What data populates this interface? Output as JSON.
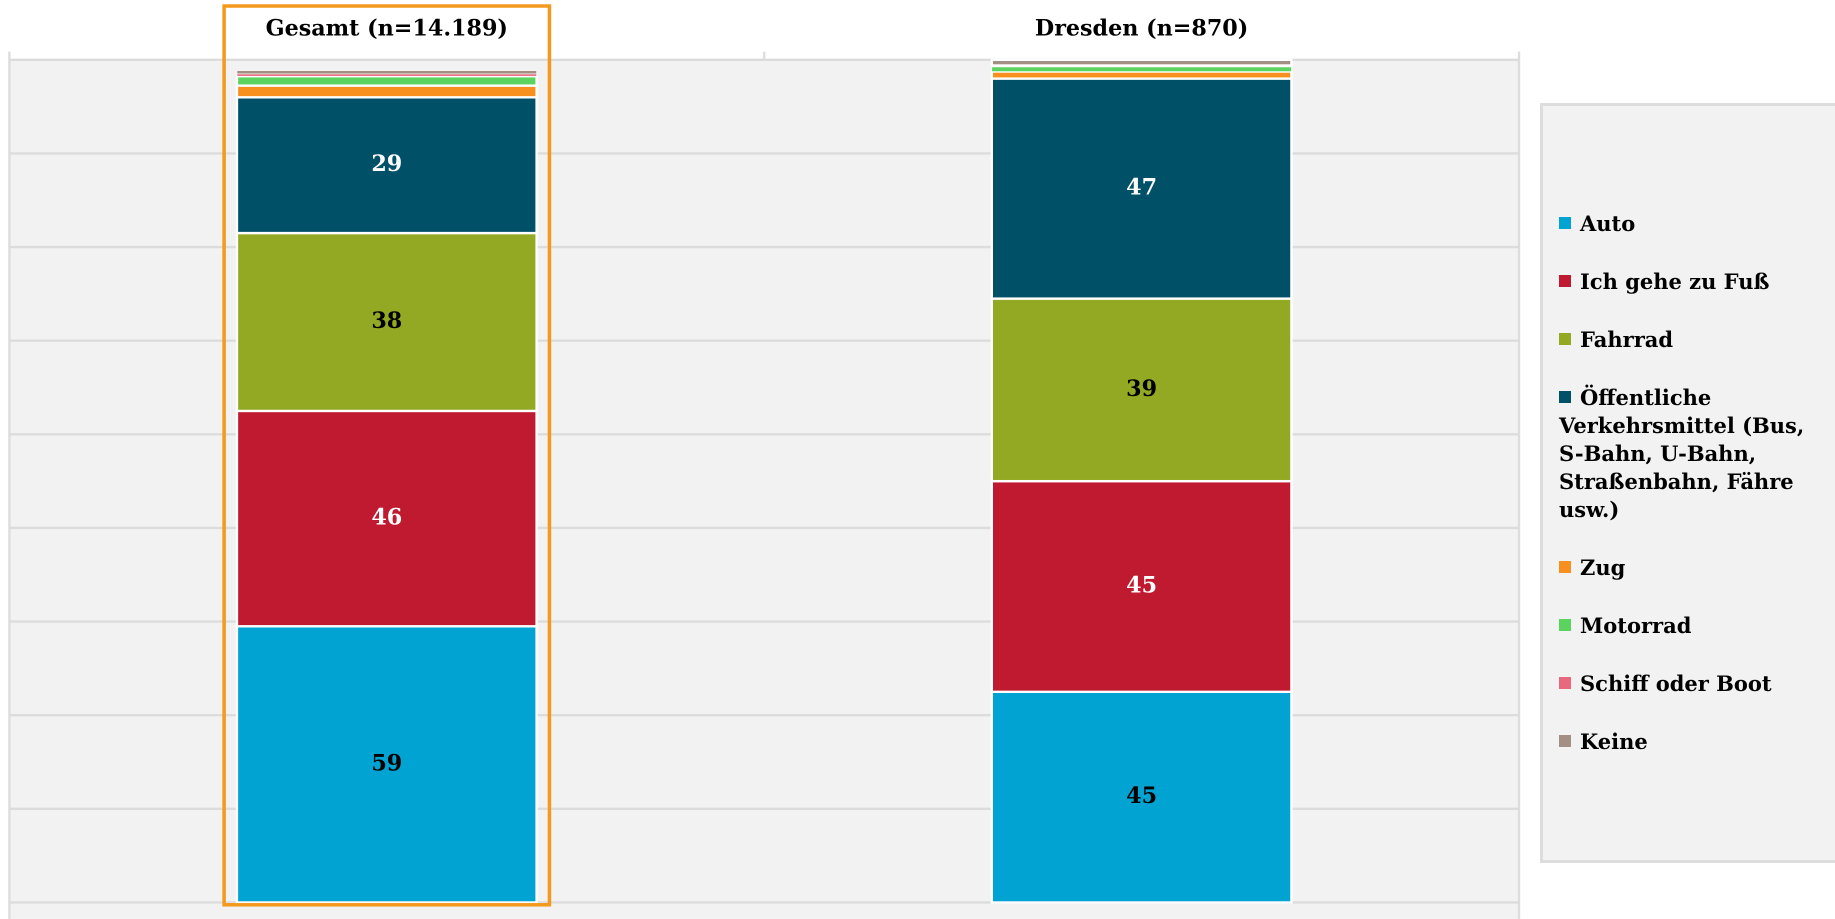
{
  "chart_data": {
    "type": "bar",
    "stacked": true,
    "categories": [
      "Gesamt (n=14.189)",
      "Dresden (n=870)"
    ],
    "series": [
      {
        "name": "Auto",
        "color": "#00a3d2",
        "values": [
          59,
          45
        ],
        "value_labels": [
          "59",
          "45"
        ]
      },
      {
        "name": "Ich gehe zu Fuß",
        "color": "#bf1a2f",
        "values": [
          46,
          45
        ],
        "value_labels": [
          "46",
          "45"
        ]
      },
      {
        "name": "Fahrrad",
        "color": "#93a823",
        "values": [
          38,
          39
        ],
        "value_labels": [
          "38",
          "39"
        ]
      },
      {
        "name": "Öffentliche Verkehrsmittel (Bus, S-Bahn, U-Bahn, Straßenbahn, Fähre usw.)",
        "color": "#005068",
        "values": [
          29,
          47
        ],
        "value_labels": [
          "29",
          "47"
        ]
      },
      {
        "name": "Zug",
        "color": "#f7901e",
        "values": [
          2.5,
          1.5
        ],
        "value_labels": [
          null,
          null
        ]
      },
      {
        "name": "Motorrad",
        "color": "#5bd35f",
        "values": [
          2,
          1
        ],
        "value_labels": [
          null,
          null
        ]
      },
      {
        "name": "Schiff oder Boot",
        "color": "#e8697d",
        "values": [
          0.5,
          0.3
        ],
        "value_labels": [
          null,
          null
        ]
      },
      {
        "name": "Keine",
        "color": "#a38f84",
        "values": [
          0.7,
          1.2
        ],
        "value_labels": [
          null,
          null
        ]
      }
    ],
    "ylim": [
      0,
      180
    ],
    "yticks": [
      0,
      20,
      40,
      60,
      80,
      100,
      120,
      140,
      160,
      180
    ],
    "grid": true
  }
}
